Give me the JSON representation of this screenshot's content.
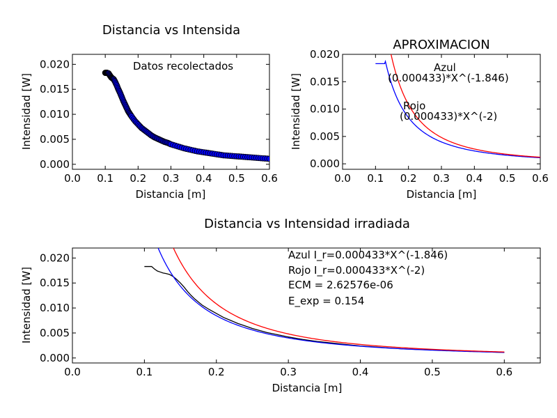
{
  "chart_data": [
    {
      "type": "scatter",
      "title": "Distancia vs Intensida",
      "xlabel": "Distancia [m]",
      "ylabel": "Intensidad [W]",
      "xlim": [
        0.0,
        0.6
      ],
      "ylim": [
        -0.001,
        0.022
      ],
      "xticks": [
        "0.0",
        "0.1",
        "0.2",
        "0.3",
        "0.4",
        "0.5",
        "0.6"
      ],
      "yticks": [
        "0.000",
        "0.005",
        "0.010",
        "0.015",
        "0.020"
      ],
      "grid": false,
      "annotations": [
        "Datos recolectados"
      ],
      "series": [
        {
          "marker_color": "#0000ff",
          "x": [
            0.1,
            0.102,
            0.104,
            0.106,
            0.11,
            0.114,
            0.118,
            0.122,
            0.126,
            0.13,
            0.135,
            0.14,
            0.145,
            0.15,
            0.155,
            0.16,
            0.165,
            0.17,
            0.175,
            0.18,
            0.19,
            0.2,
            0.21,
            0.22,
            0.23,
            0.24,
            0.25,
            0.26,
            0.27,
            0.28,
            0.29,
            0.3,
            0.32,
            0.34,
            0.36,
            0.38,
            0.4,
            0.42,
            0.44,
            0.46,
            0.48,
            0.5,
            0.52,
            0.54,
            0.56,
            0.58,
            0.6
          ],
          "y": [
            0.0183,
            0.0183,
            0.0183,
            0.0183,
            0.0182,
            0.0178,
            0.0174,
            0.0172,
            0.017,
            0.0165,
            0.0158,
            0.015,
            0.0143,
            0.0135,
            0.0127,
            0.012,
            0.0113,
            0.0106,
            0.0101,
            0.0096,
            0.0087,
            0.008,
            0.0073,
            0.0068,
            0.0063,
            0.0058,
            0.0054,
            0.0051,
            0.0048,
            0.0045,
            0.0043,
            0.004,
            0.0036,
            0.0032,
            0.0029,
            0.0026,
            0.0024,
            0.0022,
            0.002,
            0.0018,
            0.0017,
            0.0016,
            0.0015,
            0.0014,
            0.0013,
            0.0012,
            0.0011
          ]
        }
      ]
    },
    {
      "type": "line",
      "title": "APROXIMACION",
      "xlabel": "Distancia [m]",
      "ylabel": "Intensidad [W]",
      "xlim": [
        0.0,
        0.6
      ],
      "ylim": [
        -0.001,
        0.02
      ],
      "xticks": [
        "0.0",
        "0.1",
        "0.2",
        "0.3",
        "0.4",
        "0.5",
        "0.6"
      ],
      "yticks": [
        "0.000",
        "0.005",
        "0.010",
        "0.015",
        "0.020"
      ],
      "grid": false,
      "annotations": [
        "Azul",
        "(0.000433)*X^(-1.846)",
        "Rojo",
        "(0.000433)*X^(-2)"
      ],
      "series": [
        {
          "color": "#0000ff",
          "coef": 0.000433,
          "exponent": -1.846,
          "x_range": [
            0.1,
            0.6
          ],
          "plateau": 0.0183
        },
        {
          "color": "#ff0000",
          "coef": 0.000433,
          "exponent": -2,
          "x_range": [
            0.1,
            0.6
          ]
        }
      ]
    },
    {
      "type": "line",
      "title": "Distancia vs Intensidad irradiada",
      "xlabel": "Distancia [m]",
      "ylabel": "Intensidad [W]",
      "xlim": [
        0.0,
        0.65
      ],
      "ylim": [
        -0.001,
        0.022
      ],
      "xticks": [
        "0.0",
        "0.1",
        "0.2",
        "0.3",
        "0.4",
        "0.5",
        "0.6"
      ],
      "yticks": [
        "0.000",
        "0.005",
        "0.010",
        "0.015",
        "0.020"
      ],
      "grid": false,
      "annotations": [
        "Azul I_r=0.000433*X^(-1.846)",
        "Rojo I_r=0.000433*X^(-2)",
        "ECM = 2.62576e-06",
        "E_exp = 0.154"
      ],
      "series": [
        {
          "color": "#000000",
          "x": [
            0.1,
            0.11,
            0.114,
            0.118,
            0.122,
            0.126,
            0.13,
            0.135,
            0.14,
            0.145,
            0.15,
            0.155,
            0.16,
            0.165,
            0.17,
            0.175,
            0.18,
            0.19,
            0.2,
            0.21,
            0.22,
            0.23,
            0.24,
            0.25,
            0.26,
            0.27,
            0.28,
            0.29,
            0.3,
            0.32,
            0.34,
            0.36,
            0.38,
            0.4,
            0.42,
            0.44,
            0.46,
            0.48,
            0.5,
            0.52,
            0.54,
            0.56,
            0.58,
            0.6
          ],
          "y": [
            0.0183,
            0.0183,
            0.0178,
            0.0174,
            0.0172,
            0.017,
            0.0169,
            0.0167,
            0.0163,
            0.0157,
            0.015,
            0.0142,
            0.0133,
            0.0125,
            0.0118,
            0.0112,
            0.0106,
            0.0097,
            0.0089,
            0.0081,
            0.0075,
            0.0069,
            0.0064,
            0.0059,
            0.0055,
            0.0051,
            0.0048,
            0.0045,
            0.0042,
            0.0037,
            0.0033,
            0.003,
            0.0027,
            0.0024,
            0.0022,
            0.002,
            0.0018,
            0.0017,
            0.0016,
            0.0015,
            0.0014,
            0.0013,
            0.0012,
            0.0011
          ]
        },
        {
          "color": "#0000ff",
          "coef": 0.000433,
          "exponent": -1.846,
          "x_range": [
            0.1,
            0.6
          ]
        },
        {
          "color": "#ff0000",
          "coef": 0.000433,
          "exponent": -2,
          "x_range": [
            0.1,
            0.6
          ]
        }
      ]
    }
  ]
}
